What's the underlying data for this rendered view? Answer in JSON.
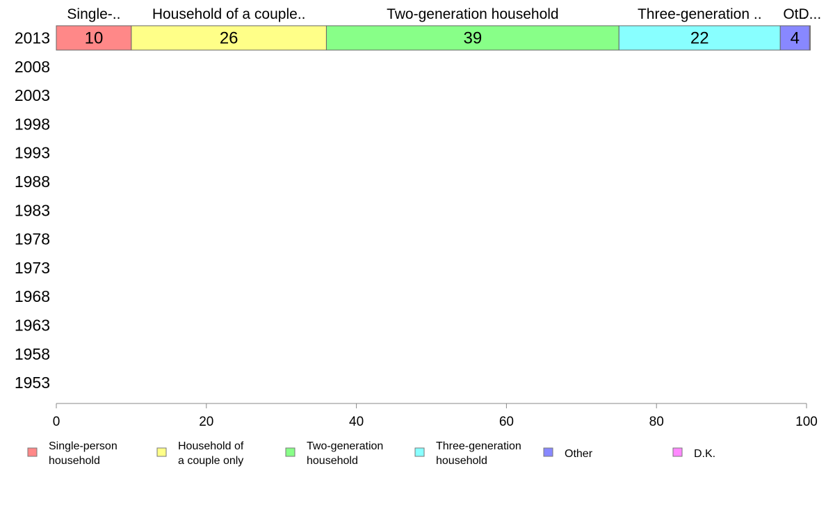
{
  "chart_data": {
    "type": "bar",
    "orientation": "horizontal-stacked",
    "categories": [
      "2013",
      "2008",
      "2003",
      "1998",
      "1993",
      "1988",
      "1983",
      "1978",
      "1973",
      "1968",
      "1963",
      "1958",
      "1953"
    ],
    "series": [
      {
        "name": "Single-person household",
        "header": "Single-..",
        "legend_lines": [
          "Single-person",
          "household"
        ],
        "color": "#ff8888",
        "values": [
          10,
          null,
          null,
          null,
          null,
          null,
          null,
          null,
          null,
          null,
          null,
          null,
          null
        ],
        "label": "10"
      },
      {
        "name": "Household of a couple only",
        "header": "Household of a couple..",
        "legend_lines": [
          "Household of",
          "a couple only"
        ],
        "color": "#ffff88",
        "values": [
          26,
          null,
          null,
          null,
          null,
          null,
          null,
          null,
          null,
          null,
          null,
          null,
          null
        ],
        "label": "26"
      },
      {
        "name": "Two-generation household",
        "header": "Two-generation household",
        "legend_lines": [
          "Two-generation",
          "household"
        ],
        "color": "#88ff88",
        "values": [
          39,
          null,
          null,
          null,
          null,
          null,
          null,
          null,
          null,
          null,
          null,
          null,
          null
        ],
        "label": "39"
      },
      {
        "name": "Three-generation household",
        "header": "Three-generation ..",
        "legend_lines": [
          "Three-generation",
          "household"
        ],
        "color": "#88ffff",
        "values": [
          21.5,
          null,
          null,
          null,
          null,
          null,
          null,
          null,
          null,
          null,
          null,
          null,
          null
        ],
        "label": "22"
      },
      {
        "name": "Other",
        "header": "Ot..",
        "legend_lines": [
          "Other"
        ],
        "color": "#8888ff",
        "values": [
          3.9,
          null,
          null,
          null,
          null,
          null,
          null,
          null,
          null,
          null,
          null,
          null,
          null
        ],
        "label": "4"
      },
      {
        "name": "D.K.",
        "header": "D...",
        "legend_lines": [
          "D.K."
        ],
        "color": "#ff88ff",
        "values": [
          0.1,
          null,
          null,
          null,
          null,
          null,
          null,
          null,
          null,
          null,
          null,
          null,
          null
        ],
        "label": ""
      }
    ],
    "xlim": [
      0,
      100
    ],
    "xticks": [
      0,
      20,
      40,
      60,
      80,
      100
    ],
    "grid": false,
    "legend_position": "bottom"
  }
}
